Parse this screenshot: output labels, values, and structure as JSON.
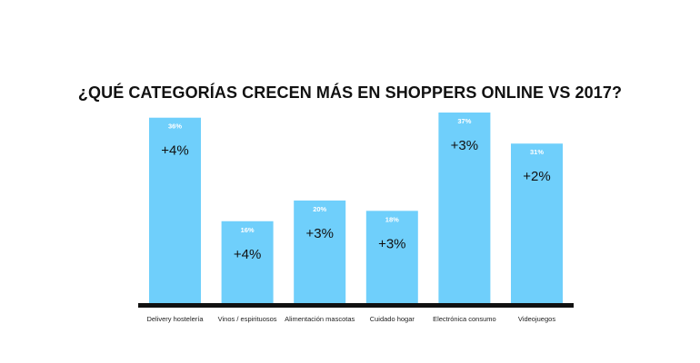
{
  "chart_data": {
    "type": "bar",
    "title": "¿QUÉ CATEGORÍAS CRECEN MÁS EN SHOPPERS ONLINE VS 2017?",
    "categories": [
      "Delivery hostelería",
      "Vinos / espirituosos",
      "Alimentación mascotas",
      "Cuidado hogar",
      "Electrónica consumo",
      "Videojuegos"
    ],
    "values": [
      36,
      16,
      20,
      18,
      37,
      31
    ],
    "value_labels": [
      "36%",
      "16%",
      "20%",
      "18%",
      "37%",
      "31%"
    ],
    "growth_labels": [
      "+4%",
      "+4%",
      "+3%",
      "+3%",
      "+3%",
      "+2%"
    ],
    "ylim": [
      0,
      37
    ],
    "xlabel": "",
    "ylabel": "",
    "grid": false,
    "legend": "none",
    "colors": {
      "bar": "#6fcffb",
      "axis": "#111111",
      "value_label": "#ffffff",
      "growth_label": "#111111",
      "category_label": "#222222"
    }
  }
}
